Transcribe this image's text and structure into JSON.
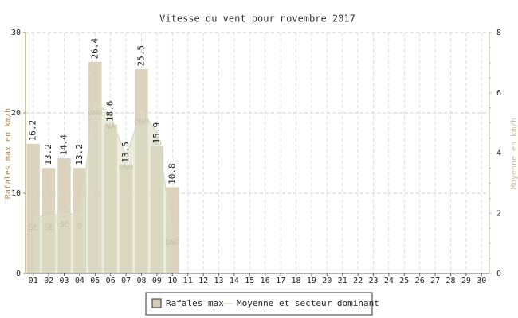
{
  "chart_data": {
    "type": "bar",
    "title": "Vitesse du vent pour novembre 2017",
    "ylabel": "Rafales max en km/h",
    "y2label": "Moyenne en km/h",
    "categories": [
      "01",
      "02",
      "03",
      "04",
      "05",
      "06",
      "07",
      "08",
      "09",
      "10",
      "11",
      "12",
      "13",
      "14",
      "15",
      "16",
      "17",
      "18",
      "19",
      "20",
      "21",
      "22",
      "23",
      "24",
      "25",
      "26",
      "27",
      "28",
      "29",
      "30"
    ],
    "series": [
      {
        "name": "Rafales max",
        "color": "#d6cbb4",
        "values": [
          16.2,
          13.2,
          14.4,
          13.2,
          26.4,
          18.6,
          13.5,
          25.5,
          15.9,
          10.8,
          null,
          null,
          null,
          null,
          null,
          null,
          null,
          null,
          null,
          null,
          null,
          null,
          null,
          null,
          null,
          null,
          null,
          null,
          null,
          null
        ]
      },
      {
        "name": "Moyenne et secteur dominant",
        "color": "#d8dcc2",
        "axis": "y2",
        "values": [
          1.9,
          1.9,
          2.0,
          1.95,
          5.7,
          5.25,
          3.9,
          5.4,
          4.7,
          1.4,
          null,
          null,
          null,
          null,
          null,
          null,
          null,
          null,
          null,
          null,
          null,
          null,
          null,
          null,
          null,
          null,
          null,
          null,
          null,
          null
        ],
        "labels": [
          "SE",
          "SE",
          "SE",
          "O",
          "ONO",
          "NA",
          "ONO",
          "ONO",
          "NO",
          "ONO",
          null,
          null,
          null,
          null,
          null,
          null,
          null,
          null,
          null,
          null,
          null,
          null,
          null,
          null,
          null,
          null,
          null,
          null,
          null,
          null
        ]
      }
    ],
    "ylim": [
      0,
      30
    ],
    "yticks": [
      0,
      10,
      20,
      30
    ],
    "y2lim": [
      0,
      8
    ],
    "y2ticks": [
      0,
      2,
      4,
      6,
      8
    ],
    "grid": true
  }
}
